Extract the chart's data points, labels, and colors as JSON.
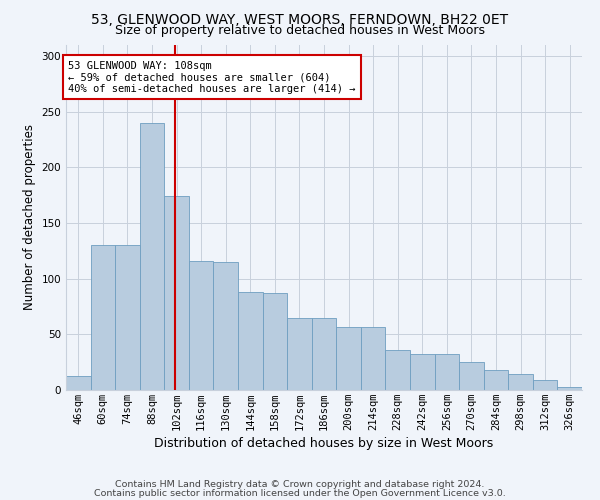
{
  "title1": "53, GLENWOOD WAY, WEST MOORS, FERNDOWN, BH22 0ET",
  "title2": "Size of property relative to detached houses in West Moors",
  "xlabel": "Distribution of detached houses by size in West Moors",
  "ylabel": "Number of detached properties",
  "annotation_line1": "53 GLENWOOD WAY: 108sqm",
  "annotation_line2": "← 59% of detached houses are smaller (604)",
  "annotation_line3": "40% of semi-detached houses are larger (414) →",
  "footer1": "Contains HM Land Registry data © Crown copyright and database right 2024.",
  "footer2": "Contains public sector information licensed under the Open Government Licence v3.0.",
  "categories": [
    "46sqm",
    "60sqm",
    "74sqm",
    "88sqm",
    "102sqm",
    "116sqm",
    "130sqm",
    "144sqm",
    "158sqm",
    "172sqm",
    "186sqm",
    "200sqm",
    "214sqm",
    "228sqm",
    "242sqm",
    "256sqm",
    "270sqm",
    "284sqm",
    "298sqm",
    "312sqm",
    "326sqm"
  ],
  "values": [
    13,
    130,
    130,
    240,
    174,
    116,
    115,
    88,
    87,
    65,
    65,
    57,
    57,
    36,
    32,
    32,
    25,
    18,
    14,
    9,
    3
  ],
  "bar_color": "#b8ccdf",
  "bar_edge_color": "#6e9ec0",
  "vline_color": "#cc0000",
  "annotation_box_color": "#ffffff",
  "annotation_box_edge": "#cc0000",
  "background_color": "#f0f4fa",
  "grid_color": "#c8d0dc",
  "ylim": [
    0,
    310
  ],
  "yticks": [
    0,
    50,
    100,
    150,
    200,
    250,
    300
  ],
  "title_fontsize": 10,
  "subtitle_fontsize": 9,
  "xlabel_fontsize": 9,
  "ylabel_fontsize": 8.5,
  "tick_fontsize": 7.5,
  "annotation_fontsize": 7.5,
  "footer_fontsize": 6.8
}
